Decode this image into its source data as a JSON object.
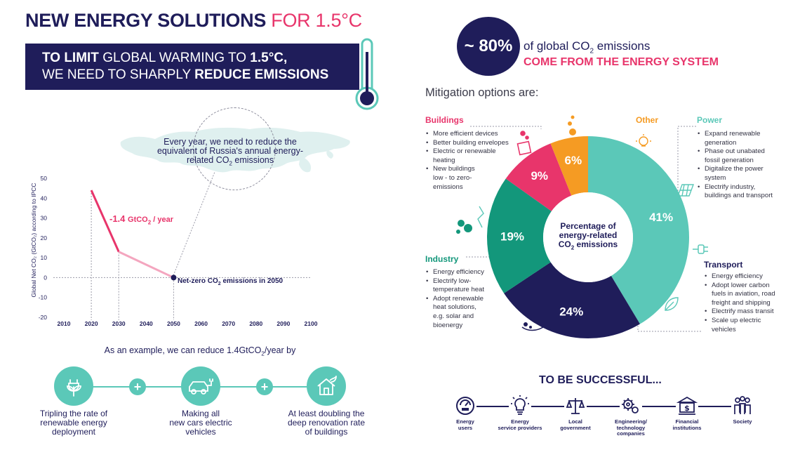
{
  "header": {
    "title_main": "NEW ENERGY SOLUTIONS",
    "title_sub": "FOR 1.5°C"
  },
  "banner": {
    "l1_bold": "TO LIMIT",
    "l1_mid": " GLOBAL WARMING TO ",
    "l1_bold2": "1.5°C,",
    "l2_start": "WE NEED TO SHARPLY ",
    "l2_bold": "REDUCE EMISSIONS"
  },
  "map_callout": {
    "line1": "Every year, we need to reduce the",
    "line2": "equivalent of Russia's annual energy-",
    "line3_a": "related CO",
    "line3_sub": "2",
    "line3_b": " emissions"
  },
  "chart_data": {
    "type": "line",
    "ylabel": "Global Net CO₂ (GtCO₂) according to IPCC",
    "x_ticks": [
      "2010",
      "2020",
      "2030",
      "2040",
      "2050",
      "2060",
      "2070",
      "2080",
      "2090",
      "2100"
    ],
    "y_ticks": [
      "50",
      "40",
      "30",
      "20",
      "10",
      "0",
      "-10",
      "-20"
    ],
    "ylim": [
      -20,
      50
    ],
    "xlim": [
      2010,
      2100
    ],
    "series": [
      {
        "x": [
          2020,
          2030
        ],
        "y": [
          44,
          13
        ],
        "color": "#e8356b"
      },
      {
        "x": [
          2030,
          2050
        ],
        "y": [
          13,
          0
        ],
        "color": "#f4a6bf"
      }
    ],
    "annotation_rate_a": "-1.4 ",
    "annotation_rate_b": "GtCO",
    "annotation_rate_sub": "2",
    "annotation_rate_c": " / year",
    "annotation_netzero_a": "Net-zero CO",
    "annotation_netzero_sub": "2",
    "annotation_netzero_b": " emissions in 2050"
  },
  "example": {
    "text_a": "As an example, we can reduce 1.4GtCO",
    "text_sub": "2",
    "text_b": "/year by",
    "plus": "+",
    "items": [
      {
        "line1": "Tripling the rate of",
        "line2": "renewable energy",
        "line3": "deployment"
      },
      {
        "line1": "Making all",
        "line2": "new cars electric",
        "line3": "vehicles"
      },
      {
        "line1": "At least doubling the",
        "line2": "deep renovation rate",
        "line3": "of buildings"
      }
    ]
  },
  "energy_share": {
    "value": "~ 80%",
    "text_a": "of global CO",
    "text_sub": "2",
    "text_b": " emissions",
    "highlight": "COME FROM THE ENERGY SYSTEM"
  },
  "mitigation_title": "Mitigation options are:",
  "donut": {
    "center_l1": "Percentage of",
    "center_l2": "energy-related",
    "center_l3_a": "CO",
    "center_l3_sub": "2",
    "center_l3_b": " emissions",
    "segments": [
      {
        "name": "Power",
        "value": 41,
        "label": "41%",
        "color": "#5bc8b8"
      },
      {
        "name": "Transport",
        "value": 24,
        "label": "24%",
        "color": "#1f1d5a"
      },
      {
        "name": "Industry",
        "value": 19,
        "label": "19%",
        "color": "#13977b"
      },
      {
        "name": "Buildings",
        "value": 9,
        "label": "9%",
        "color": "#e8356b"
      },
      {
        "name": "Other",
        "value": 6,
        "label": "6%",
        "color": "#f59b23"
      }
    ]
  },
  "sectors": {
    "buildings": {
      "title": "Buildings",
      "color": "#e8356b",
      "items": [
        "More efficient devices",
        "Better building envelopes",
        "Electric or renewable",
        "heating",
        "New buildings",
        "low - to zero-",
        "emissions"
      ]
    },
    "other": {
      "title": "Other",
      "color": "#f59b23"
    },
    "power": {
      "title": "Power",
      "color": "#5bc8b8",
      "items": [
        "Expand renewable",
        "generation",
        "Phase out unabated",
        "fossil generation",
        "Digitalize the power",
        "system",
        "Electrify industry,",
        "buildings and transport"
      ]
    },
    "industry": {
      "title": "Industry",
      "color": "#13977b",
      "items": [
        "Energy efficiency",
        "Electrify low-",
        "temperature heat",
        "Adopt renewable",
        "heat solutions,",
        "e.g. solar and",
        "bioenergy"
      ]
    },
    "transport": {
      "title": "Transport",
      "color": "#1f1d5a",
      "items": [
        "Energy efficiency",
        "Adopt lower carbon",
        "fuels in aviation, road",
        "freight and shipping",
        "Electrify mass transit",
        "Scale up electric",
        "vehicles"
      ]
    }
  },
  "success": {
    "title": "TO BE SUCCESSFUL...",
    "actors": [
      {
        "l1": "Energy",
        "l2": "users",
        "l3": "",
        "icon": "meter-icon"
      },
      {
        "l1": "Energy",
        "l2": "service providers",
        "l3": "",
        "icon": "lightbulb-icon"
      },
      {
        "l1": "Local",
        "l2": "government",
        "l3": "",
        "icon": "scales-icon"
      },
      {
        "l1": "Engineering/",
        "l2": "technology",
        "l3": "companies",
        "icon": "gears-icon"
      },
      {
        "l1": "Financial",
        "l2": "institutions",
        "l3": "",
        "icon": "bank-icon"
      },
      {
        "l1": "Society",
        "l2": "",
        "l3": "",
        "icon": "people-icon"
      }
    ]
  }
}
